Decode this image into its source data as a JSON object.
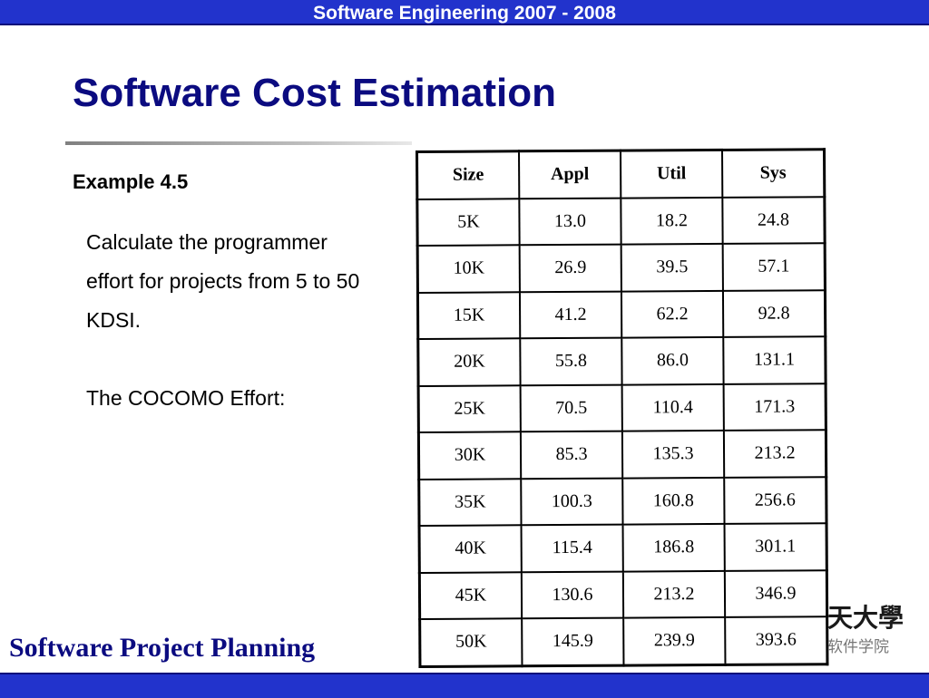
{
  "header": {
    "course": "Software Engineering 2007 - 2008"
  },
  "slide": {
    "title": "Software Cost Estimation",
    "example": "Example 4.5",
    "paragraphs": [
      "Calculate the programmer effort for projects from 5 to 50 KDSI.",
      "The COCOMO Effort:"
    ]
  },
  "table": {
    "headers": [
      "Size",
      "Appl",
      "Util",
      "Sys"
    ],
    "rows": [
      [
        "5K",
        "13.0",
        "18.2",
        "24.8"
      ],
      [
        "10K",
        "26.9",
        "39.5",
        "57.1"
      ],
      [
        "15K",
        "41.2",
        "62.2",
        "92.8"
      ],
      [
        "20K",
        "55.8",
        "86.0",
        "131.1"
      ],
      [
        "25K",
        "70.5",
        "110.4",
        "171.3"
      ],
      [
        "30K",
        "85.3",
        "135.3",
        "213.2"
      ],
      [
        "35K",
        "100.3",
        "160.8",
        "256.6"
      ],
      [
        "40K",
        "115.4",
        "186.8",
        "301.1"
      ],
      [
        "45K",
        "130.6",
        "213.2",
        "346.9"
      ],
      [
        "50K",
        "145.9",
        "239.9",
        "393.6"
      ]
    ]
  },
  "logo": {
    "line1": "天大學",
    "line2": "软件学院"
  },
  "footer": {
    "title": "Software Project Planning"
  },
  "colors": {
    "bar": "#2233cc",
    "title": "#0b0b80"
  }
}
